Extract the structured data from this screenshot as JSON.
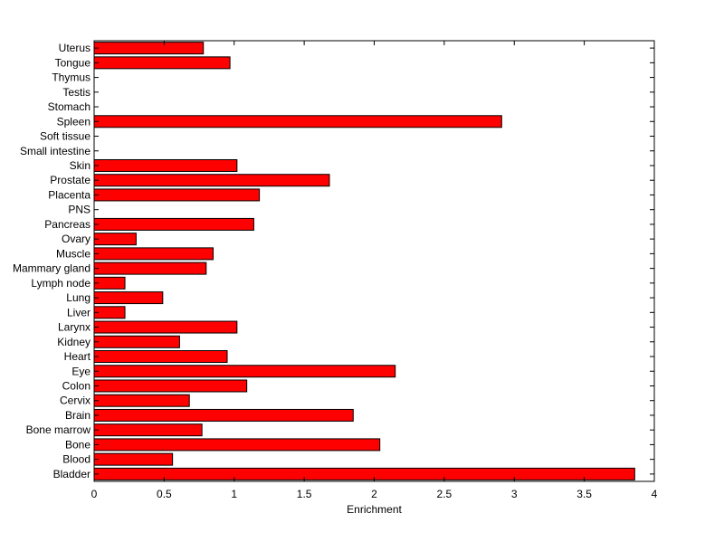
{
  "chart_data": {
    "type": "bar",
    "orientation": "horizontal",
    "title": "",
    "xlabel": "Enrichment",
    "ylabel": "",
    "xlim": [
      0,
      4
    ],
    "xticks": [
      0,
      0.5,
      1,
      1.5,
      2,
      2.5,
      3,
      3.5,
      4
    ],
    "xtick_labels": [
      "0",
      "0.5",
      "1",
      "1.5",
      "2",
      "2.5",
      "3",
      "3.5",
      "4"
    ],
    "grid": false,
    "legend": "none",
    "bar_color": "#ff0000",
    "bar_edge_color": "#000000",
    "categories": [
      "Bladder",
      "Blood",
      "Bone",
      "Bone marrow",
      "Brain",
      "Cervix",
      "Colon",
      "Eye",
      "Heart",
      "Kidney",
      "Larynx",
      "Liver",
      "Lung",
      "Lymph node",
      "Mammary gland",
      "Muscle",
      "Ovary",
      "Pancreas",
      "PNS",
      "Placenta",
      "Prostate",
      "Skin",
      "Small intestine",
      "Soft tissue",
      "Spleen",
      "Stomach",
      "Testis",
      "Thymus",
      "Tongue",
      "Uterus"
    ],
    "values": [
      3.86,
      0.56,
      2.04,
      0.77,
      1.85,
      0.68,
      1.09,
      2.15,
      0.95,
      0.61,
      1.02,
      0.22,
      0.49,
      0.22,
      0.8,
      0.85,
      0.3,
      1.14,
      0,
      1.18,
      1.68,
      1.02,
      0,
      0,
      2.91,
      0,
      0,
      0,
      0.97,
      0.78
    ]
  }
}
